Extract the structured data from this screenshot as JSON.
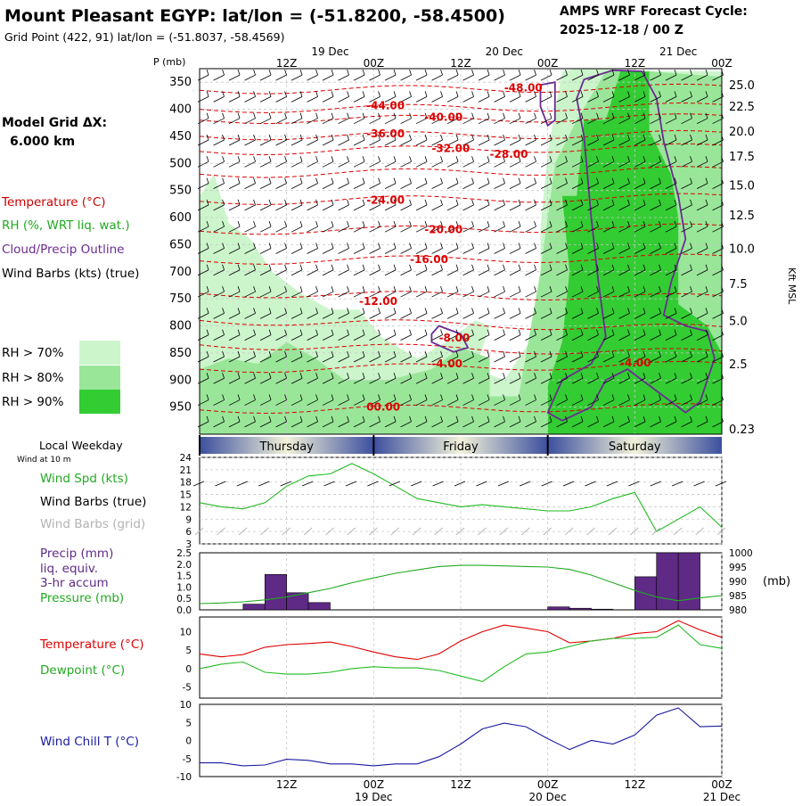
{
  "header": {
    "title": "Mount Pleasant EGYP:  lat/lon = (-51.8200, -58.4500)",
    "subtitle": "Grid Point (422, 91) lat/lon = (-51.8037, -58.4569)",
    "cycle_line1": "AMPS WRF Forecast Cycle:",
    "cycle_line2": "2025-12-18 / 00  Z"
  },
  "left_panel": {
    "model_grid": "Model Grid ΔX:",
    "grid_value": "6.000 km",
    "legend": [
      {
        "label": "Temperature (°C)",
        "color": "#cc0000"
      },
      {
        "label": "RH (%, WRT liq. wat.)",
        "color": "#22aa22"
      },
      {
        "label": "Cloud/Precip Outline",
        "color": "#6a2c91"
      },
      {
        "label": "Wind Barbs (kts) (true)",
        "color": "#000000"
      }
    ],
    "rh_key": [
      {
        "label": "RH > 70%",
        "color": "#ccf5cc"
      },
      {
        "label": "RH > 80%",
        "color": "#99e699"
      },
      {
        "label": "RH > 90%",
        "color": "#33cc33"
      }
    ]
  },
  "colors": {
    "temperature": "#dd0000",
    "dewpoint": "#22bb22",
    "windspd": "#22bb22",
    "pressure": "#22aa22",
    "precip": "#5e2a86",
    "windchill": "#1a1aa0",
    "contour_label": "#dd0000",
    "outline": "#6a2c91"
  },
  "time_axis": {
    "top_dates": [
      "19 Dec",
      "20 Dec",
      "21 Dec"
    ],
    "top_date_x": [
      66,
      90,
      114
    ],
    "hour_labels": [
      "12Z",
      "00Z",
      "12Z",
      "00Z",
      "12Z",
      "00Z"
    ],
    "hour_label_x": [
      60,
      72,
      84,
      96,
      108,
      120
    ],
    "bottom_dates": [
      "19 Dec",
      "20 Dec",
      "21 Dec"
    ],
    "bottom_date_x": [
      72,
      96,
      120
    ],
    "range_hours": [
      48,
      120
    ]
  },
  "day_bar": {
    "label": "Local Weekday",
    "days": [
      {
        "name": "Thursday",
        "start": 48,
        "end": 72
      },
      {
        "name": "Friday",
        "start": 72,
        "end": 96
      },
      {
        "name": "Saturday",
        "start": 96,
        "end": 120
      }
    ]
  },
  "cross_section": {
    "pressure_title": "P (mb)",
    "pressure_ticks": [
      350,
      400,
      450,
      500,
      550,
      600,
      650,
      700,
      750,
      800,
      850,
      900,
      950
    ],
    "pressure_range": [
      325,
      1000
    ],
    "height_title": "Kft MSL",
    "height_ticks": [
      {
        "label": "25.0",
        "p": 355
      },
      {
        "label": "22.5",
        "p": 394
      },
      {
        "label": "20.0",
        "p": 440
      },
      {
        "label": "17.5",
        "p": 486
      },
      {
        "label": "15.0",
        "p": 540
      },
      {
        "label": "12.5",
        "p": 595
      },
      {
        "label": "10.0",
        "p": 657
      },
      {
        "label": "7.5",
        "p": 722
      },
      {
        "label": "5.0",
        "p": 790
      },
      {
        "label": "2.5",
        "p": 870
      },
      {
        "label": "0.23",
        "p": 990
      }
    ],
    "temp_labels": [
      {
        "text": "-48.00",
        "h": 90,
        "p": 360
      },
      {
        "text": "-44.00",
        "h": 71,
        "p": 393
      },
      {
        "text": "-40.00",
        "h": 79,
        "p": 415
      },
      {
        "text": "-36.00",
        "h": 71,
        "p": 445
      },
      {
        "text": "-32.00",
        "h": 80,
        "p": 472
      },
      {
        "text": "-28.00",
        "h": 88,
        "p": 483
      },
      {
        "text": "-24.00",
        "h": 71,
        "p": 568
      },
      {
        "text": "-20.00",
        "h": 79,
        "p": 622
      },
      {
        "text": "-16.00",
        "h": 77,
        "p": 677
      },
      {
        "text": "-12.00",
        "h": 70,
        "p": 755
      },
      {
        "text": "-8.00",
        "h": 81,
        "p": 822
      },
      {
        "text": "-4.00",
        "h": 80,
        "p": 870
      },
      {
        "text": "-4.00",
        "h": 106,
        "p": 868
      },
      {
        "text": "00.00",
        "h": 71,
        "p": 950
      }
    ]
  },
  "wind_panel": {
    "title": "Wind at 10 m",
    "labels": [
      "Wind Spd (kts)",
      "Wind Barbs (true)",
      "Wind Barbs (grid)"
    ],
    "ticks": [
      3,
      6,
      9,
      12,
      15,
      18,
      21,
      24
    ],
    "range": [
      3,
      24
    ],
    "hours": [
      48,
      51,
      54,
      57,
      60,
      63,
      66,
      69,
      72,
      75,
      78,
      81,
      84,
      87,
      90,
      93,
      96,
      99,
      102,
      105,
      108,
      111,
      114,
      117,
      120
    ],
    "speed_kts": [
      13,
      12,
      11.5,
      13,
      17,
      19.5,
      20,
      22.5,
      20,
      17,
      14,
      13,
      12,
      12.5,
      12,
      11.5,
      11,
      11,
      12,
      14,
      15.5,
      6,
      9,
      12,
      7
    ]
  },
  "precip_panel": {
    "labels": [
      "Precip (mm)",
      "liq. equiv.",
      "3-hr accum",
      "Pressure (mb)"
    ],
    "precip_ticks": [
      "0.0",
      "0.5",
      "1.0",
      "1.5",
      "2.0",
      "2.5"
    ],
    "precip_range": [
      0,
      2.5
    ],
    "pressure_ticks": [
      "980",
      "985",
      "990",
      "995",
      "1000"
    ],
    "pressure_range": [
      980,
      1000
    ],
    "pressure_unit": "(mb)",
    "bars": [
      {
        "start": 54,
        "end": 57,
        "value": 0.25
      },
      {
        "start": 57,
        "end": 60,
        "value": 1.55
      },
      {
        "start": 60,
        "end": 63,
        "value": 0.75
      },
      {
        "start": 63,
        "end": 66,
        "value": 0.32
      },
      {
        "start": 96,
        "end": 99,
        "value": 0.13
      },
      {
        "start": 99,
        "end": 102,
        "value": 0.07
      },
      {
        "start": 102,
        "end": 105,
        "value": 0.03
      },
      {
        "start": 108,
        "end": 111,
        "value": 1.45
      },
      {
        "start": 111,
        "end": 114,
        "value": 2.5
      },
      {
        "start": 114,
        "end": 117,
        "value": 2.5
      }
    ],
    "pressure_hours": [
      48,
      51,
      54,
      57,
      60,
      63,
      66,
      69,
      72,
      75,
      78,
      81,
      84,
      87,
      90,
      93,
      96,
      99,
      102,
      105,
      108,
      111,
      114,
      117,
      120
    ],
    "pressure_mb": [
      982.2,
      982.4,
      982.8,
      983.5,
      984.5,
      986,
      987.5,
      989.5,
      991.2,
      992.8,
      994,
      995.2,
      995.6,
      995.6,
      995.4,
      995.2,
      995,
      994.2,
      992.2,
      989.5,
      986.8,
      984.5,
      983.2,
      984.2,
      985
    ]
  },
  "temp_panel": {
    "labels": [
      "Temperature (°C)",
      "Dewpoint (°C)"
    ],
    "ticks": [
      -5,
      0,
      5,
      10
    ],
    "range": [
      -8,
      14
    ],
    "hours": [
      48,
      51,
      54,
      57,
      60,
      63,
      66,
      69,
      72,
      75,
      78,
      81,
      84,
      87,
      90,
      93,
      96,
      99,
      102,
      105,
      108,
      111,
      114,
      117,
      120
    ],
    "temperature": [
      4,
      3.2,
      3.8,
      5.8,
      6.5,
      6.8,
      7.2,
      6,
      4.5,
      3.2,
      2.5,
      4,
      7.5,
      10,
      11.8,
      11,
      10,
      7,
      7.5,
      8.2,
      9.5,
      10,
      13,
      10.5,
      8.5
    ],
    "dewpoint": [
      0,
      1.2,
      1.8,
      -1,
      -1.5,
      -1.5,
      -1,
      0,
      0.5,
      0.2,
      0.2,
      -0.5,
      -2,
      -3.5,
      0.5,
      4,
      4.5,
      6,
      7.5,
      8.2,
      8.2,
      8.5,
      11.8,
      6.5,
      5.5
    ]
  },
  "windchill_panel": {
    "label": "Wind Chill T (°C)",
    "ticks": [
      -10,
      -5,
      0,
      5,
      10
    ],
    "range": [
      -10,
      10
    ],
    "hours": [
      48,
      51,
      54,
      57,
      60,
      63,
      66,
      69,
      72,
      75,
      78,
      81,
      84,
      87,
      90,
      93,
      96,
      99,
      102,
      105,
      108,
      111,
      114,
      117,
      120
    ],
    "values": [
      -6.2,
      -6.2,
      -7,
      -6.8,
      -5.2,
      -5.5,
      -6.5,
      -6.5,
      -7,
      -6.5,
      -6.5,
      -4.5,
      -1,
      3.2,
      4.8,
      3.8,
      0.5,
      -2.5,
      0,
      -1,
      1.5,
      7,
      9,
      3.8,
      4
    ]
  }
}
